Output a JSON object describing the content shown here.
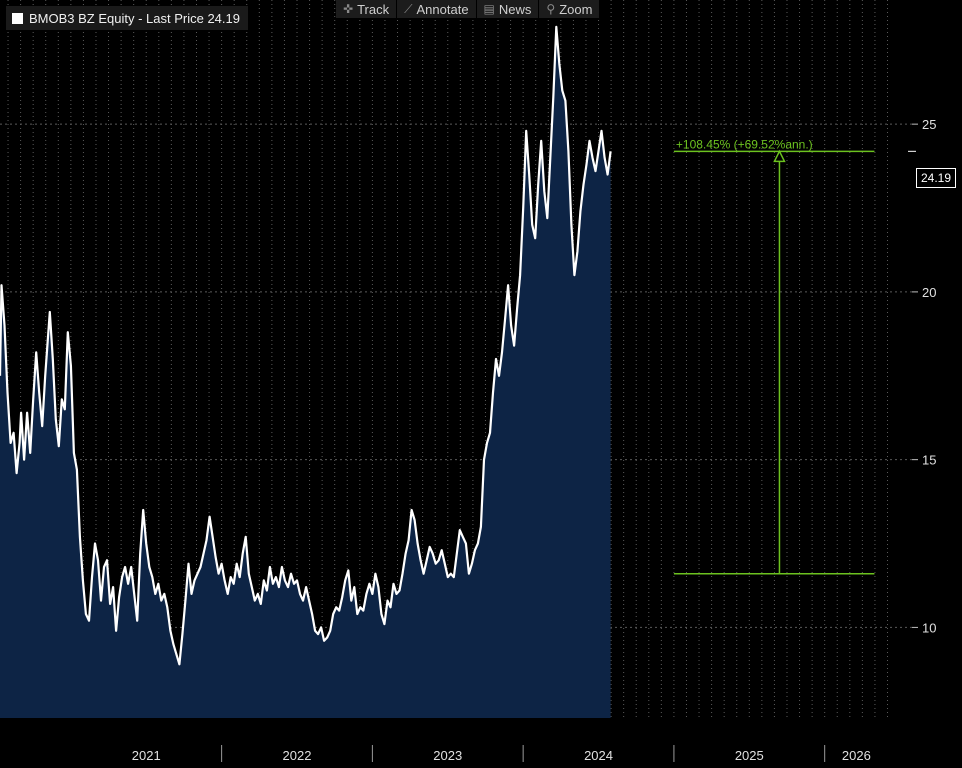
{
  "legend": {
    "label": "BMOB3 BZ Equity - Last Price 24.19",
    "swatch_color": "#ffffff"
  },
  "toolbar": [
    {
      "name": "track",
      "label": "Track",
      "icon": "crosshair-icon"
    },
    {
      "name": "annotate",
      "label": "Annotate",
      "icon": "pencil-icon"
    },
    {
      "name": "news",
      "label": "News",
      "icon": "news-icon"
    },
    {
      "name": "zoom",
      "label": "Zoom",
      "icon": "magnifier-icon"
    }
  ],
  "price_tag": "24.19",
  "colors": {
    "line": "#ffffff",
    "fill": "#0d2445",
    "annotation": "#6cc21f",
    "grid": "#5a5a5a",
    "background": "#000000"
  },
  "chart_data": {
    "type": "area",
    "title": "BMOB3 BZ Equity - Last Price 24.19",
    "xlabel": "",
    "ylabel": "",
    "ylim": [
      7.3,
      28.7
    ],
    "xlim": [
      2020.53,
      2026.42
    ],
    "yticks": [
      10,
      15,
      20,
      25
    ],
    "ytick_labels": [
      "10",
      "15",
      "20",
      "25"
    ],
    "xtick_labels": [
      "2021",
      "2022",
      "2023",
      "2024",
      "2025",
      "2026"
    ],
    "year_boundaries": [
      2021,
      2022,
      2023,
      2024,
      2025,
      2026
    ],
    "grid": true,
    "last_price": 24.19,
    "series": [
      {
        "name": "BMOB3 BZ Equity",
        "points": [
          [
            2020.53,
            17.5
          ],
          [
            2020.54,
            20.2
          ],
          [
            2020.56,
            19.0
          ],
          [
            2020.58,
            17.0
          ],
          [
            2020.6,
            15.5
          ],
          [
            2020.62,
            15.8
          ],
          [
            2020.64,
            14.6
          ],
          [
            2020.66,
            15.5
          ],
          [
            2020.67,
            16.4
          ],
          [
            2020.69,
            15.0
          ],
          [
            2020.71,
            16.4
          ],
          [
            2020.73,
            15.2
          ],
          [
            2020.75,
            16.8
          ],
          [
            2020.77,
            18.2
          ],
          [
            2020.79,
            17.0
          ],
          [
            2020.81,
            16.0
          ],
          [
            2020.83,
            17.5
          ],
          [
            2020.86,
            19.4
          ],
          [
            2020.88,
            18.0
          ],
          [
            2020.9,
            16.2
          ],
          [
            2020.92,
            15.4
          ],
          [
            2020.94,
            16.8
          ],
          [
            2020.96,
            16.5
          ],
          [
            2020.98,
            18.8
          ],
          [
            2021.0,
            17.8
          ],
          [
            2021.02,
            15.2
          ],
          [
            2021.04,
            14.7
          ],
          [
            2021.06,
            12.7
          ],
          [
            2021.08,
            11.4
          ],
          [
            2021.1,
            10.4
          ],
          [
            2021.12,
            10.2
          ],
          [
            2021.14,
            11.5
          ],
          [
            2021.16,
            12.5
          ],
          [
            2021.18,
            12.0
          ],
          [
            2021.2,
            10.8
          ],
          [
            2021.22,
            11.8
          ],
          [
            2021.24,
            12.0
          ],
          [
            2021.26,
            10.7
          ],
          [
            2021.28,
            11.2
          ],
          [
            2021.3,
            9.9
          ],
          [
            2021.32,
            10.9
          ],
          [
            2021.34,
            11.5
          ],
          [
            2021.36,
            11.8
          ],
          [
            2021.38,
            11.3
          ],
          [
            2021.4,
            11.8
          ],
          [
            2021.42,
            11.0
          ],
          [
            2021.44,
            10.2
          ],
          [
            2021.46,
            12.2
          ],
          [
            2021.48,
            13.5
          ],
          [
            2021.5,
            12.5
          ],
          [
            2021.52,
            11.8
          ],
          [
            2021.54,
            11.5
          ],
          [
            2021.56,
            11.0
          ],
          [
            2021.58,
            11.3
          ],
          [
            2021.6,
            10.8
          ],
          [
            2021.62,
            11.0
          ],
          [
            2021.64,
            10.6
          ],
          [
            2021.66,
            9.9
          ],
          [
            2021.68,
            9.5
          ],
          [
            2021.7,
            9.2
          ],
          [
            2021.72,
            8.9
          ],
          [
            2021.74,
            9.8
          ],
          [
            2021.76,
            10.8
          ],
          [
            2021.78,
            11.9
          ],
          [
            2021.8,
            11.0
          ],
          [
            2021.82,
            11.4
          ],
          [
            2021.84,
            11.6
          ],
          [
            2021.86,
            11.8
          ],
          [
            2021.88,
            12.2
          ],
          [
            2021.9,
            12.6
          ],
          [
            2021.92,
            13.3
          ],
          [
            2021.94,
            12.7
          ],
          [
            2021.96,
            12.1
          ],
          [
            2021.98,
            11.6
          ],
          [
            2022.0,
            11.9
          ],
          [
            2022.02,
            11.4
          ],
          [
            2022.04,
            11.0
          ],
          [
            2022.06,
            11.5
          ],
          [
            2022.08,
            11.3
          ],
          [
            2022.1,
            11.9
          ],
          [
            2022.12,
            11.5
          ],
          [
            2022.14,
            12.2
          ],
          [
            2022.16,
            12.7
          ],
          [
            2022.18,
            11.6
          ],
          [
            2022.2,
            11.2
          ],
          [
            2022.22,
            10.8
          ],
          [
            2022.24,
            11.0
          ],
          [
            2022.26,
            10.7
          ],
          [
            2022.28,
            11.4
          ],
          [
            2022.3,
            11.1
          ],
          [
            2022.32,
            11.8
          ],
          [
            2022.34,
            11.3
          ],
          [
            2022.36,
            11.5
          ],
          [
            2022.38,
            11.2
          ],
          [
            2022.4,
            11.8
          ],
          [
            2022.42,
            11.4
          ],
          [
            2022.44,
            11.2
          ],
          [
            2022.46,
            11.6
          ],
          [
            2022.48,
            11.3
          ],
          [
            2022.5,
            11.4
          ],
          [
            2022.52,
            11.0
          ],
          [
            2022.54,
            10.8
          ],
          [
            2022.56,
            11.2
          ],
          [
            2022.58,
            10.8
          ],
          [
            2022.6,
            10.4
          ],
          [
            2022.62,
            9.9
          ],
          [
            2022.64,
            9.8
          ],
          [
            2022.66,
            10.0
          ],
          [
            2022.68,
            9.6
          ],
          [
            2022.7,
            9.7
          ],
          [
            2022.72,
            9.9
          ],
          [
            2022.74,
            10.4
          ],
          [
            2022.76,
            10.6
          ],
          [
            2022.78,
            10.5
          ],
          [
            2022.8,
            10.9
          ],
          [
            2022.82,
            11.4
          ],
          [
            2022.84,
            11.7
          ],
          [
            2022.86,
            10.8
          ],
          [
            2022.88,
            11.2
          ],
          [
            2022.9,
            10.4
          ],
          [
            2022.92,
            10.6
          ],
          [
            2022.94,
            10.5
          ],
          [
            2022.96,
            11.0
          ],
          [
            2022.98,
            11.3
          ],
          [
            2023.0,
            11.0
          ],
          [
            2023.02,
            11.6
          ],
          [
            2023.04,
            11.2
          ],
          [
            2023.06,
            10.4
          ],
          [
            2023.08,
            10.1
          ],
          [
            2023.1,
            10.8
          ],
          [
            2023.12,
            10.6
          ],
          [
            2023.14,
            11.3
          ],
          [
            2023.16,
            11.0
          ],
          [
            2023.18,
            11.1
          ],
          [
            2023.2,
            11.6
          ],
          [
            2023.22,
            12.2
          ],
          [
            2023.24,
            12.6
          ],
          [
            2023.26,
            13.5
          ],
          [
            2023.28,
            13.2
          ],
          [
            2023.3,
            12.5
          ],
          [
            2023.32,
            12.0
          ],
          [
            2023.34,
            11.6
          ],
          [
            2023.36,
            12.0
          ],
          [
            2023.38,
            12.4
          ],
          [
            2023.4,
            12.2
          ],
          [
            2023.42,
            11.9
          ],
          [
            2023.44,
            12.0
          ],
          [
            2023.46,
            12.3
          ],
          [
            2023.48,
            11.9
          ],
          [
            2023.5,
            11.5
          ],
          [
            2023.52,
            11.6
          ],
          [
            2023.54,
            11.5
          ],
          [
            2023.56,
            12.2
          ],
          [
            2023.58,
            12.9
          ],
          [
            2023.6,
            12.7
          ],
          [
            2023.62,
            12.5
          ],
          [
            2023.64,
            11.6
          ],
          [
            2023.66,
            11.9
          ],
          [
            2023.68,
            12.3
          ],
          [
            2023.7,
            12.5
          ],
          [
            2023.72,
            13.0
          ],
          [
            2023.74,
            15.0
          ],
          [
            2023.76,
            15.5
          ],
          [
            2023.78,
            15.8
          ],
          [
            2023.8,
            17.0
          ],
          [
            2023.82,
            18.0
          ],
          [
            2023.84,
            17.5
          ],
          [
            2023.86,
            18.2
          ],
          [
            2023.88,
            19.2
          ],
          [
            2023.9,
            20.2
          ],
          [
            2023.92,
            19.0
          ],
          [
            2023.94,
            18.4
          ],
          [
            2023.96,
            19.5
          ],
          [
            2023.98,
            20.5
          ],
          [
            2024.0,
            22.5
          ],
          [
            2024.02,
            24.8
          ],
          [
            2024.04,
            23.5
          ],
          [
            2024.06,
            22.0
          ],
          [
            2024.08,
            21.6
          ],
          [
            2024.1,
            23.2
          ],
          [
            2024.12,
            24.5
          ],
          [
            2024.14,
            23.0
          ],
          [
            2024.16,
            22.2
          ],
          [
            2024.18,
            24.0
          ],
          [
            2024.2,
            25.8
          ],
          [
            2024.22,
            27.9
          ],
          [
            2024.24,
            26.8
          ],
          [
            2024.26,
            26.0
          ],
          [
            2024.28,
            25.7
          ],
          [
            2024.3,
            24.2
          ],
          [
            2024.32,
            22.0
          ],
          [
            2024.34,
            20.5
          ],
          [
            2024.36,
            21.2
          ],
          [
            2024.38,
            22.4
          ],
          [
            2024.4,
            23.2
          ],
          [
            2024.42,
            23.8
          ],
          [
            2024.44,
            24.5
          ],
          [
            2024.46,
            24.0
          ],
          [
            2024.48,
            23.6
          ],
          [
            2024.5,
            24.2
          ],
          [
            2024.52,
            24.8
          ],
          [
            2024.54,
            24.0
          ],
          [
            2024.56,
            23.5
          ],
          [
            2024.58,
            24.19
          ]
        ]
      }
    ],
    "annotation": {
      "label": "+108.45% (+69.52%ann.)",
      "start_x": 2025.0,
      "start_y": 11.6,
      "end_x": 2026.33,
      "end_y": 24.19,
      "arrow_x": 2025.7
    }
  }
}
